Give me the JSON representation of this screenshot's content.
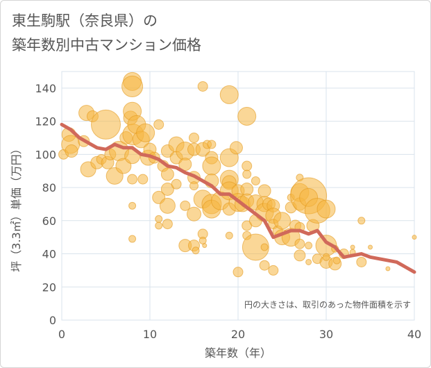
{
  "page": {
    "title_line1": "東生駒駅（奈良県）の",
    "title_line2": "築年数別中古マンション価格"
  },
  "colors": {
    "bubble_fill": "#f5b642",
    "bubble_stroke": "#e39a1e",
    "line": "#d0695a",
    "grid": "#d9e3ec",
    "axis_text": "#555555"
  },
  "chart_data": {
    "type": "scatter",
    "title": "築年数別中古マンション価格",
    "xlabel": "築年数（年）",
    "ylabel": "坪（3.3㎡）単価（万円）",
    "xlim": [
      0,
      40
    ],
    "ylim": [
      0,
      150
    ],
    "xticks": [
      "0",
      "10",
      "20",
      "30",
      "40"
    ],
    "yticks": [
      "0",
      "20",
      "40",
      "60",
      "80",
      "100",
      "120",
      "140"
    ],
    "grid": true,
    "note": "円の大きさは、取引のあった物件面積を示す",
    "line": {
      "x": [
        0,
        1,
        2,
        3,
        4,
        5,
        6,
        7,
        8,
        9,
        10,
        11,
        12,
        13,
        14,
        15,
        16,
        17,
        18,
        19,
        20,
        21,
        22,
        23,
        24,
        25,
        26,
        27,
        28,
        29,
        30,
        31,
        32,
        33,
        34,
        35,
        36,
        37,
        38,
        39,
        40
      ],
      "y": [
        118,
        115,
        110,
        107,
        104,
        103,
        106,
        104,
        104,
        100,
        99,
        97,
        93,
        92,
        89,
        87,
        84,
        81,
        76,
        76,
        72,
        68,
        64,
        60,
        50,
        52,
        54,
        54,
        52,
        54,
        47,
        44,
        38,
        39,
        40,
        38,
        37,
        36,
        35,
        32,
        29
      ]
    },
    "bubbles": [
      {
        "x": 0.2,
        "y": 100,
        "s": 7
      },
      {
        "x": 0.8,
        "y": 112,
        "s": 10
      },
      {
        "x": 1,
        "y": 106,
        "s": 13
      },
      {
        "x": 1.1,
        "y": 102,
        "s": 9
      },
      {
        "x": 2.5,
        "y": 108,
        "s": 8
      },
      {
        "x": 2.8,
        "y": 125,
        "s": 11
      },
      {
        "x": 3,
        "y": 91,
        "s": 11
      },
      {
        "x": 3.5,
        "y": 123,
        "s": 8
      },
      {
        "x": 4,
        "y": 95,
        "s": 9
      },
      {
        "x": 4.5,
        "y": 97,
        "s": 7
      },
      {
        "x": 5,
        "y": 118,
        "s": 21
      },
      {
        "x": 5.2,
        "y": 95,
        "s": 9
      },
      {
        "x": 5.5,
        "y": 100,
        "s": 8
      },
      {
        "x": 6,
        "y": 87,
        "s": 12
      },
      {
        "x": 6.5,
        "y": 102,
        "s": 14
      },
      {
        "x": 7,
        "y": 93,
        "s": 11
      },
      {
        "x": 7.3,
        "y": 110,
        "s": 9
      },
      {
        "x": 7.8,
        "y": 122,
        "s": 10
      },
      {
        "x": 8,
        "y": 144,
        "s": 13
      },
      {
        "x": 8,
        "y": 141,
        "s": 15
      },
      {
        "x": 8,
        "y": 126,
        "s": 13
      },
      {
        "x": 8.1,
        "y": 112,
        "s": 15
      },
      {
        "x": 8.5,
        "y": 118,
        "s": 13
      },
      {
        "x": 8,
        "y": 99,
        "s": 11
      },
      {
        "x": 8,
        "y": 85,
        "s": 7
      },
      {
        "x": 8,
        "y": 69,
        "s": 5
      },
      {
        "x": 8,
        "y": 49,
        "s": 5
      },
      {
        "x": 9,
        "y": 109,
        "s": 12
      },
      {
        "x": 9.5,
        "y": 113,
        "s": 13
      },
      {
        "x": 9.2,
        "y": 85,
        "s": 7
      },
      {
        "x": 9.8,
        "y": 98,
        "s": 11
      },
      {
        "x": 10,
        "y": 103,
        "s": 9
      },
      {
        "x": 10.5,
        "y": 98,
        "s": 8
      },
      {
        "x": 11,
        "y": 118,
        "s": 7
      },
      {
        "x": 11,
        "y": 74,
        "s": 9
      },
      {
        "x": 11,
        "y": 61,
        "s": 5
      },
      {
        "x": 11,
        "y": 57,
        "s": 5
      },
      {
        "x": 11.5,
        "y": 93,
        "s": 8
      },
      {
        "x": 12,
        "y": 102,
        "s": 9
      },
      {
        "x": 12,
        "y": 88,
        "s": 9
      },
      {
        "x": 12,
        "y": 79,
        "s": 9
      },
      {
        "x": 12,
        "y": 69,
        "s": 11
      },
      {
        "x": 12,
        "y": 58,
        "s": 7
      },
      {
        "x": 13,
        "y": 106,
        "s": 11
      },
      {
        "x": 13,
        "y": 98,
        "s": 9
      },
      {
        "x": 13,
        "y": 82,
        "s": 7
      },
      {
        "x": 14,
        "y": 102,
        "s": 13
      },
      {
        "x": 14,
        "y": 94,
        "s": 9
      },
      {
        "x": 14,
        "y": 69,
        "s": 7
      },
      {
        "x": 14,
        "y": 45,
        "s": 9
      },
      {
        "x": 15,
        "y": 110,
        "s": 7
      },
      {
        "x": 15,
        "y": 103,
        "s": 9
      },
      {
        "x": 15,
        "y": 86,
        "s": 9
      },
      {
        "x": 15,
        "y": 81,
        "s": 6
      },
      {
        "x": 15,
        "y": 64,
        "s": 10
      },
      {
        "x": 15,
        "y": 45,
        "s": 8
      },
      {
        "x": 15.2,
        "y": 42,
        "s": 5
      },
      {
        "x": 16,
        "y": 141,
        "s": 7
      },
      {
        "x": 16,
        "y": 103,
        "s": 10
      },
      {
        "x": 16,
        "y": 73,
        "s": 13
      },
      {
        "x": 16,
        "y": 52,
        "s": 7
      },
      {
        "x": 16,
        "y": 48,
        "s": 5
      },
      {
        "x": 16.2,
        "y": 45,
        "s": 3
      },
      {
        "x": 16.5,
        "y": 106,
        "s": 6
      },
      {
        "x": 17,
        "y": 98,
        "s": 9
      },
      {
        "x": 17,
        "y": 93,
        "s": 13
      },
      {
        "x": 17,
        "y": 84,
        "s": 10
      },
      {
        "x": 17,
        "y": 70,
        "s": 14
      },
      {
        "x": 17,
        "y": 67,
        "s": 13
      },
      {
        "x": 17,
        "y": 106,
        "s": 6
      },
      {
        "x": 18,
        "y": 72,
        "s": 13
      },
      {
        "x": 19,
        "y": 136,
        "s": 13
      },
      {
        "x": 19,
        "y": 98,
        "s": 13
      },
      {
        "x": 19,
        "y": 85,
        "s": 13
      },
      {
        "x": 19,
        "y": 83,
        "s": 10
      },
      {
        "x": 19,
        "y": 78,
        "s": 13
      },
      {
        "x": 19,
        "y": 67,
        "s": 9
      },
      {
        "x": 19,
        "y": 51,
        "s": 5
      },
      {
        "x": 19.8,
        "y": 104,
        "s": 9
      },
      {
        "x": 20,
        "y": 78,
        "s": 9
      },
      {
        "x": 20,
        "y": 71,
        "s": 13
      },
      {
        "x": 20,
        "y": 29,
        "s": 7
      },
      {
        "x": 20.5,
        "y": 70,
        "s": 11
      },
      {
        "x": 21,
        "y": 123,
        "s": 13
      },
      {
        "x": 21,
        "y": 93,
        "s": 7
      },
      {
        "x": 21,
        "y": 88,
        "s": 6
      },
      {
        "x": 21,
        "y": 79,
        "s": 9
      },
      {
        "x": 21,
        "y": 72,
        "s": 10
      },
      {
        "x": 21,
        "y": 57,
        "s": 7
      },
      {
        "x": 21,
        "y": 51,
        "s": 6
      },
      {
        "x": 22,
        "y": 71,
        "s": 11
      },
      {
        "x": 22,
        "y": 44,
        "s": 19
      },
      {
        "x": 22,
        "y": 60,
        "s": 9
      },
      {
        "x": 22,
        "y": 84,
        "s": 6
      },
      {
        "x": 23,
        "y": 78,
        "s": 9
      },
      {
        "x": 23,
        "y": 70,
        "s": 11
      },
      {
        "x": 23,
        "y": 65,
        "s": 13
      },
      {
        "x": 23,
        "y": 44,
        "s": 5
      },
      {
        "x": 23,
        "y": 33,
        "s": 7
      },
      {
        "x": 23.5,
        "y": 70,
        "s": 9
      },
      {
        "x": 24,
        "y": 69,
        "s": 9
      },
      {
        "x": 24,
        "y": 63,
        "s": 11
      },
      {
        "x": 24,
        "y": 58,
        "s": 7
      },
      {
        "x": 24,
        "y": 30,
        "s": 7
      },
      {
        "x": 24.5,
        "y": 54,
        "s": 7
      },
      {
        "x": 25,
        "y": 60,
        "s": 12
      },
      {
        "x": 25,
        "y": 50,
        "s": 11
      },
      {
        "x": 26,
        "y": 74,
        "s": 5
      },
      {
        "x": 26,
        "y": 68,
        "s": 8
      },
      {
        "x": 26,
        "y": 50,
        "s": 13
      },
      {
        "x": 26.5,
        "y": 57,
        "s": 8
      },
      {
        "x": 27,
        "y": 86,
        "s": 5
      },
      {
        "x": 27,
        "y": 77,
        "s": 13
      },
      {
        "x": 27,
        "y": 70,
        "s": 9
      },
      {
        "x": 27,
        "y": 56,
        "s": 7
      },
      {
        "x": 27,
        "y": 46,
        "s": 7
      },
      {
        "x": 27,
        "y": 39,
        "s": 8
      },
      {
        "x": 28,
        "y": 75,
        "s": 26
      },
      {
        "x": 28,
        "y": 74,
        "s": 13
      },
      {
        "x": 28,
        "y": 45,
        "s": 5
      },
      {
        "x": 28,
        "y": 35,
        "s": 4
      },
      {
        "x": 28.5,
        "y": 57,
        "s": 9
      },
      {
        "x": 29,
        "y": 66,
        "s": 18
      },
      {
        "x": 29,
        "y": 37,
        "s": 7
      },
      {
        "x": 30,
        "y": 67,
        "s": 13
      },
      {
        "x": 30,
        "y": 45,
        "s": 15
      },
      {
        "x": 30,
        "y": 35,
        "s": 9
      },
      {
        "x": 30,
        "y": 38,
        "s": 5
      },
      {
        "x": 31,
        "y": 34,
        "s": 9
      },
      {
        "x": 31,
        "y": 43,
        "s": 5
      },
      {
        "x": 31.2,
        "y": 36,
        "s": 5
      },
      {
        "x": 32,
        "y": 40,
        "s": 7
      },
      {
        "x": 33,
        "y": 44,
        "s": 3
      },
      {
        "x": 33,
        "y": 41,
        "s": 4
      },
      {
        "x": 34,
        "y": 60,
        "s": 5
      },
      {
        "x": 34,
        "y": 35,
        "s": 7
      },
      {
        "x": 35,
        "y": 44,
        "s": 3
      },
      {
        "x": 37,
        "y": 31,
        "s": 3
      },
      {
        "x": 40,
        "y": 50,
        "s": 3
      }
    ]
  }
}
